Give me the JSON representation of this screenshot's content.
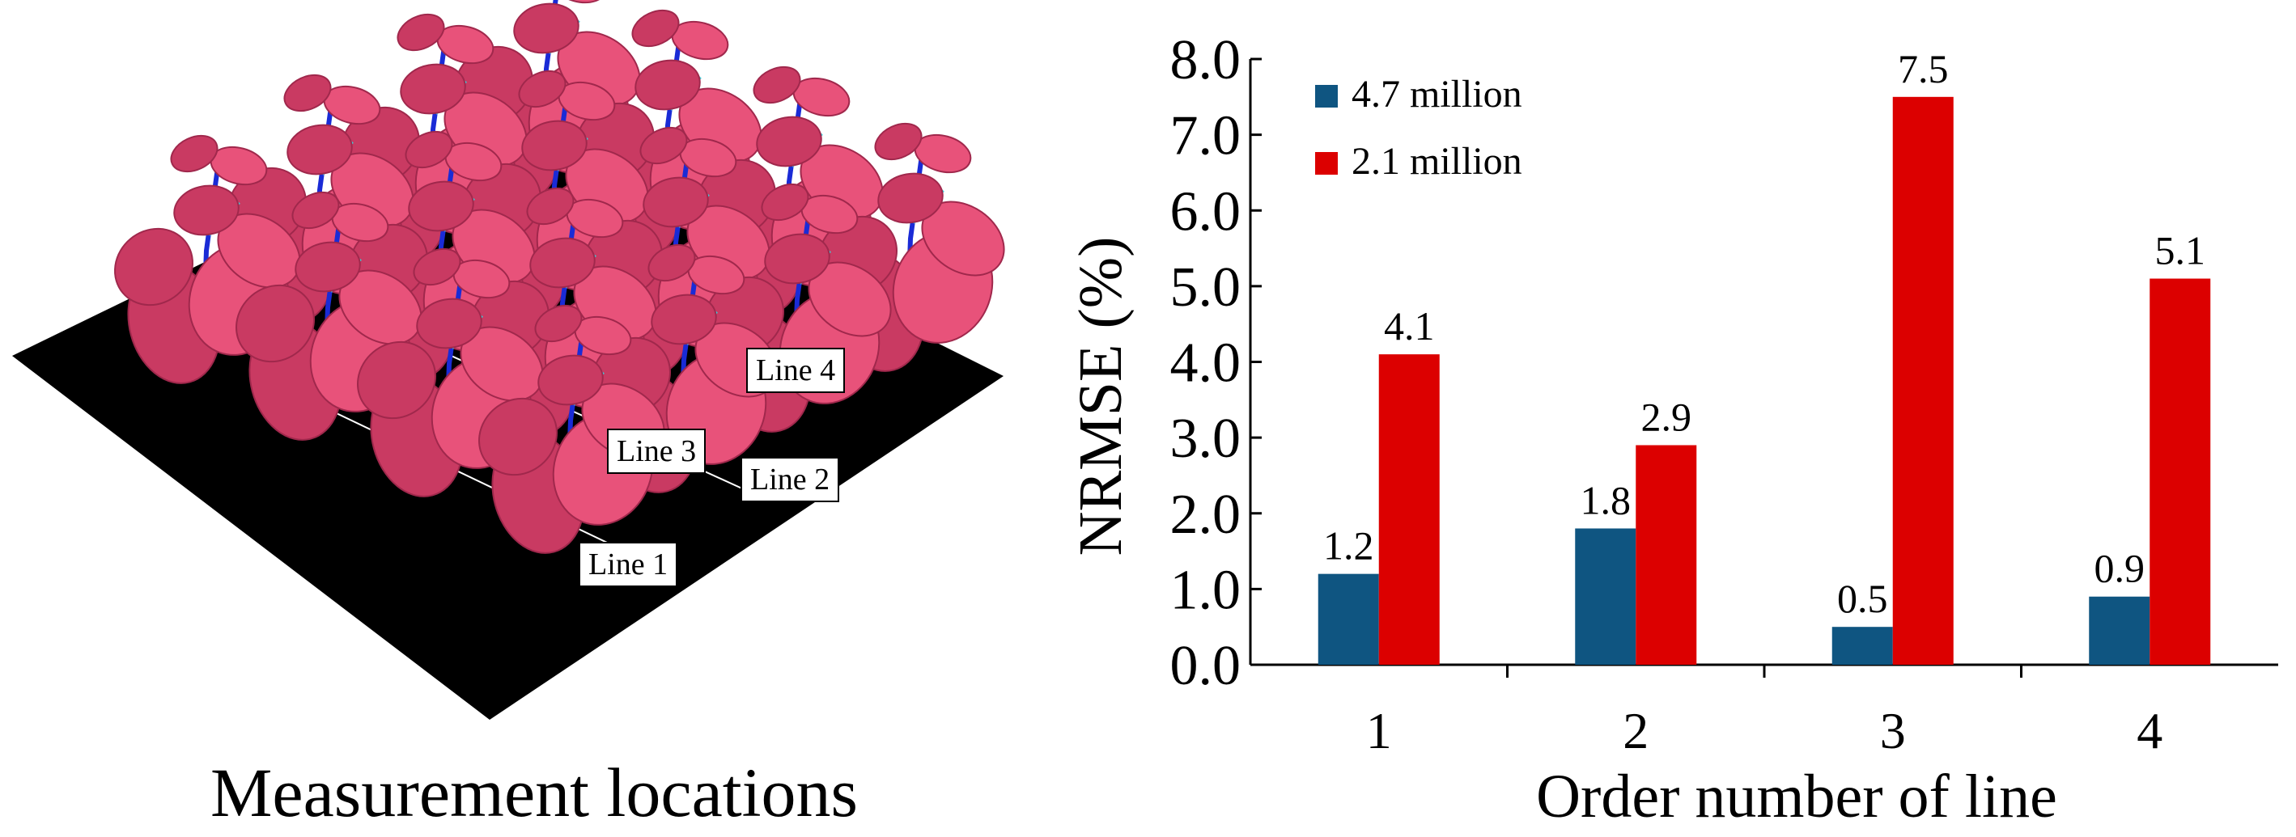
{
  "scene": {
    "caption": "Measurement locations",
    "lines": [
      {
        "id": "line-1",
        "label": "Line 1"
      },
      {
        "id": "line-2",
        "label": "Line 2"
      },
      {
        "id": "line-3",
        "label": "Line 3"
      },
      {
        "id": "line-4",
        "label": "Line 4"
      }
    ],
    "colors": {
      "ground": "#000000",
      "leaf": "#e8527a",
      "leaf_dark": "#c93a62",
      "stem": "#1a2bd6",
      "petiole": "#37d6e0"
    }
  },
  "chart_data": {
    "type": "bar",
    "categories": [
      "1",
      "2",
      "3",
      "4"
    ],
    "series": [
      {
        "name": "4.7 million",
        "values": [
          1.2,
          1.8,
          0.5,
          0.9
        ],
        "labels": [
          "1.2",
          "1.8",
          "0.5",
          "0.9"
        ],
        "color": "#0f5581"
      },
      {
        "name": "2.1 million",
        "values": [
          4.1,
          2.9,
          7.5,
          5.1
        ],
        "labels": [
          "4.1",
          "2.9",
          "7.5",
          "5.1"
        ],
        "color": "#dc0000"
      }
    ],
    "title": "",
    "xlabel": "Order number of line",
    "ylabel": "NRMSE (%)",
    "ylim": [
      0,
      8
    ],
    "yticks": [
      "0.0",
      "1.0",
      "2.0",
      "3.0",
      "4.0",
      "5.0",
      "6.0",
      "7.0",
      "8.0"
    ],
    "legend_position": "top-left",
    "grid": false
  }
}
